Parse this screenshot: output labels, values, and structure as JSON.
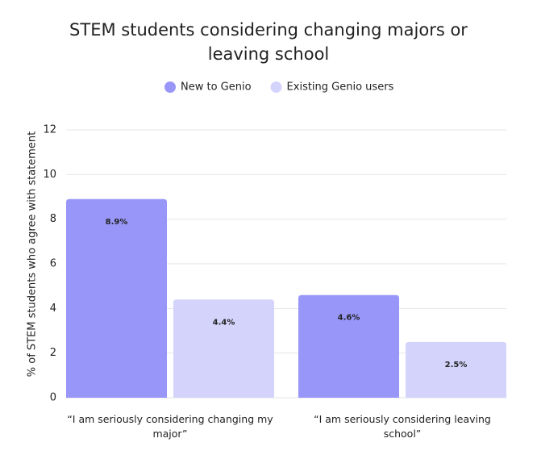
{
  "chart_data": {
    "type": "bar",
    "title": "STEM students considering changing majors or leaving school",
    "y_label": "% of STEM students who agree with statement",
    "categories": [
      "“I am seriously considering changing my major”",
      "“I am seriously considering leaving school”"
    ],
    "series": [
      {
        "name": "New to Genio",
        "color": "#9896f8",
        "values": [
          8.9,
          4.6
        ],
        "value_labels": [
          "8.9%",
          "4.6%"
        ]
      },
      {
        "name": "Existing Genio users",
        "color": "#d4d3fb",
        "values": [
          4.4,
          2.5
        ],
        "value_labels": [
          "4.4%",
          "2.5%"
        ]
      }
    ],
    "ylim": [
      0,
      12
    ],
    "yticks": [
      0,
      2,
      4,
      6,
      8,
      10,
      12
    ],
    "grid": true,
    "legend": "top"
  }
}
